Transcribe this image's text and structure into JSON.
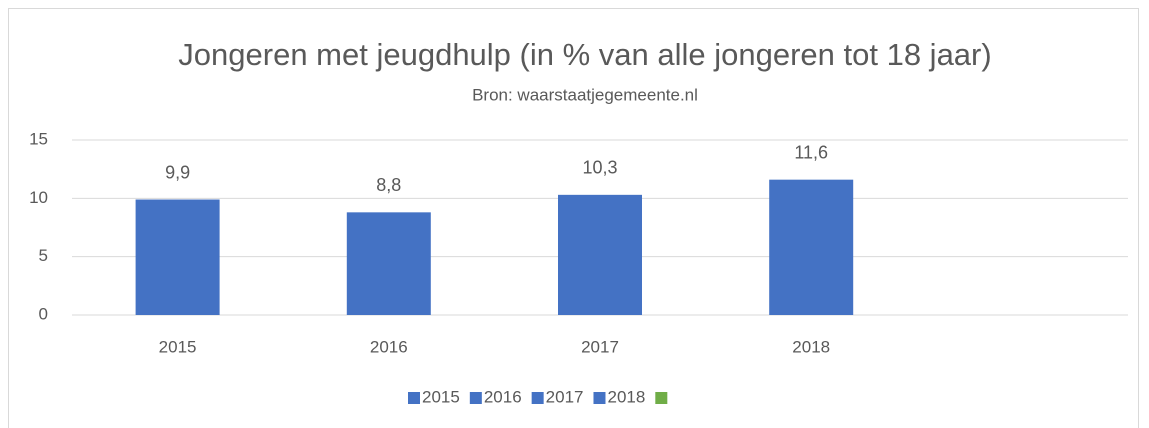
{
  "chart_data": {
    "type": "bar",
    "title": "Jongeren met jeugdhulp (in % van alle jongeren tot 18 jaar)",
    "subtitle": "Bron: waarstaatjegemeente.nl",
    "categories": [
      "2015",
      "2016",
      "2017",
      "2018",
      null
    ],
    "values": [
      9.9,
      8.8,
      10.3,
      11.6,
      null
    ],
    "value_labels": [
      "9,9",
      "8,8",
      "10,3",
      "11,6",
      null
    ],
    "colors": [
      "#4472c4",
      "#4472c4",
      "#4472c4",
      "#4472c4",
      "#70ad47"
    ],
    "ylim": [
      0,
      15
    ],
    "yticks": [
      0,
      5,
      10,
      15
    ],
    "grid": true,
    "legend": "bottom"
  }
}
